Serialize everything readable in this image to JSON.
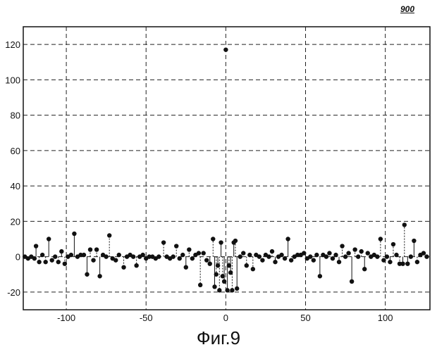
{
  "figure_number": "900",
  "caption": "Фиг.9",
  "chart_data": {
    "type": "scatter",
    "style": "stem",
    "title": "",
    "xlabel": "",
    "ylabel": "",
    "xlim": [
      -127,
      128
    ],
    "ylim": [
      -30,
      130
    ],
    "xticks": [
      -100,
      -50,
      0,
      50,
      100
    ],
    "yticks": [
      -20,
      0,
      20,
      40,
      60,
      80,
      100,
      120
    ],
    "grid": true,
    "grid_style": "dashed",
    "legend": "none",
    "colors": {
      "points": "#111111",
      "grid": "#222222",
      "frame": "#111111"
    },
    "series": [
      {
        "points": [
          [
            -126,
            0
          ],
          [
            -124,
            -1
          ],
          [
            -122,
            0
          ],
          [
            -120,
            -1
          ],
          [
            -119,
            6
          ],
          [
            -117,
            -3
          ],
          [
            -115,
            1
          ],
          [
            -113,
            -3
          ],
          [
            -111,
            10
          ],
          [
            -109,
            -2
          ],
          [
            -107,
            0
          ],
          [
            -105,
            -3
          ],
          [
            -103,
            3
          ],
          [
            -101,
            -4
          ],
          [
            -99,
            0
          ],
          [
            -97,
            1
          ],
          [
            -95,
            13
          ],
          [
            -93,
            0
          ],
          [
            -91,
            1
          ],
          [
            -89,
            1
          ],
          [
            -87,
            -10
          ],
          [
            -85,
            4
          ],
          [
            -83,
            -2
          ],
          [
            -81,
            4
          ],
          [
            -79,
            -11
          ],
          [
            -77,
            1
          ],
          [
            -75,
            0
          ],
          [
            -73,
            12
          ],
          [
            -71,
            -1
          ],
          [
            -69,
            -2
          ],
          [
            -67,
            1
          ],
          [
            -64,
            -6
          ],
          [
            -62,
            0
          ],
          [
            -60,
            1
          ],
          [
            -58,
            0
          ],
          [
            -56,
            -5
          ],
          [
            -54,
            0
          ],
          [
            -52,
            1
          ],
          [
            -50,
            -1
          ],
          [
            -48,
            0
          ],
          [
            -46,
            0
          ],
          [
            -44,
            -1
          ],
          [
            -42,
            0
          ],
          [
            -39,
            8
          ],
          [
            -37,
            0
          ],
          [
            -35,
            -1
          ],
          [
            -33,
            0
          ],
          [
            -31,
            6
          ],
          [
            -29,
            -1
          ],
          [
            -27,
            1
          ],
          [
            -25,
            -6
          ],
          [
            -23,
            4
          ],
          [
            -21,
            -1
          ],
          [
            -19,
            1
          ],
          [
            -17,
            2
          ],
          [
            -16,
            -16
          ],
          [
            -14,
            2
          ],
          [
            -12,
            -2
          ],
          [
            -10,
            -4
          ],
          [
            -8,
            10
          ],
          [
            -7,
            -17
          ],
          [
            -6,
            -10
          ],
          [
            -5,
            -5
          ],
          [
            -4,
            -19
          ],
          [
            -3,
            8
          ],
          [
            -2,
            -11
          ],
          [
            -1,
            -14
          ],
          [
            0,
            117
          ],
          [
            1,
            -19
          ],
          [
            2,
            -5
          ],
          [
            3,
            -9
          ],
          [
            4,
            -19
          ],
          [
            5,
            8
          ],
          [
            6,
            9
          ],
          [
            7,
            -18
          ],
          [
            9,
            0
          ],
          [
            11,
            2
          ],
          [
            13,
            -5
          ],
          [
            15,
            1
          ],
          [
            17,
            -7
          ],
          [
            19,
            1
          ],
          [
            21,
            0
          ],
          [
            23,
            -2
          ],
          [
            25,
            1
          ],
          [
            27,
            0
          ],
          [
            29,
            3
          ],
          [
            31,
            -3
          ],
          [
            33,
            0
          ],
          [
            35,
            1
          ],
          [
            37,
            -1
          ],
          [
            39,
            10
          ],
          [
            41,
            -2
          ],
          [
            43,
            0
          ],
          [
            45,
            1
          ],
          [
            47,
            1
          ],
          [
            49,
            2
          ],
          [
            51,
            -1
          ],
          [
            53,
            0
          ],
          [
            55,
            -2
          ],
          [
            57,
            1
          ],
          [
            59,
            -11
          ],
          [
            61,
            1
          ],
          [
            63,
            0
          ],
          [
            65,
            2
          ],
          [
            67,
            -1
          ],
          [
            69,
            1
          ],
          [
            71,
            -3
          ],
          [
            73,
            6
          ],
          [
            75,
            0
          ],
          [
            77,
            2
          ],
          [
            79,
            -14
          ],
          [
            81,
            4
          ],
          [
            83,
            0
          ],
          [
            85,
            3
          ],
          [
            87,
            -7
          ],
          [
            89,
            2
          ],
          [
            91,
            0
          ],
          [
            93,
            1
          ],
          [
            95,
            0
          ],
          [
            97,
            10
          ],
          [
            99,
            -2
          ],
          [
            101,
            0
          ],
          [
            103,
            -3
          ],
          [
            105,
            7
          ],
          [
            107,
            1
          ],
          [
            109,
            -4
          ],
          [
            111,
            -4
          ],
          [
            112,
            18
          ],
          [
            114,
            -4
          ],
          [
            116,
            0
          ],
          [
            118,
            9
          ],
          [
            120,
            -3
          ],
          [
            122,
            1
          ],
          [
            124,
            2
          ],
          [
            126,
            0
          ]
        ]
      }
    ]
  }
}
